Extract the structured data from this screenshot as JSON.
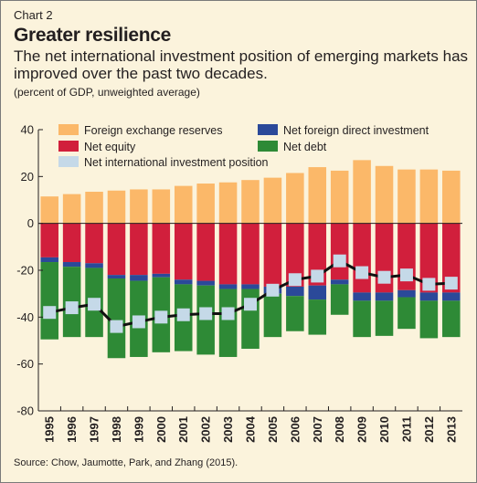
{
  "header": {
    "chart_number": "Chart 2",
    "title": "Greater resilience",
    "subtitle": "The net international investment position of emerging markets has improved over the past two decades.",
    "note": "(percent of GDP, unweighted average)"
  },
  "source": "Source: Chow, Jaumotte, Park, and Zhang (2015).",
  "colors": {
    "reserves": "#fbb869",
    "fdi": "#2b4999",
    "equity": "#d11f3c",
    "debt": "#2e8a36",
    "niip": "#c5d9e8"
  },
  "chart_data": {
    "type": "bar",
    "title": "Greater resilience",
    "ylim": [
      -80,
      40
    ],
    "yticks": [
      40,
      20,
      0,
      -20,
      -40,
      -60,
      -80
    ],
    "grid": false,
    "legend": "top",
    "categories": [
      "1995",
      "1996",
      "1997",
      "1998",
      "1999",
      "2000",
      "2001",
      "2002",
      "2003",
      "2004",
      "2005",
      "2006",
      "2007",
      "2008",
      "2009",
      "2010",
      "2011",
      "2012",
      "2013"
    ],
    "series": [
      {
        "name": "Foreign exchange reserves",
        "values": [
          11.5,
          12.5,
          13.5,
          14,
          14.5,
          14.5,
          16,
          17,
          17.5,
          18.5,
          19.5,
          21.5,
          24,
          22.5,
          27,
          24.5,
          23,
          23,
          22.5
        ]
      },
      {
        "name": "Net equity",
        "values": [
          -14.5,
          -16.5,
          -17,
          -22,
          -22,
          -21.5,
          -24,
          -24.5,
          -26,
          -26,
          -27,
          -27,
          -26.5,
          -24,
          -29.5,
          -29.5,
          -28.5,
          -29.5,
          -29.5
        ]
      },
      {
        "name": "Net foreign direct investment",
        "values": [
          -2,
          -2,
          -2,
          -1.5,
          -2.5,
          -1.5,
          -2,
          -2,
          -2,
          -2,
          -3,
          -4,
          -6,
          -2,
          -3.5,
          -3.5,
          -3,
          -3.5,
          -3.5
        ]
      },
      {
        "name": "Net debt",
        "values": [
          -33,
          -30,
          -29.5,
          -34,
          -32.5,
          -32,
          -28.5,
          -29.5,
          -29,
          -25.5,
          -18.5,
          -15,
          -15,
          -13,
          -15.5,
          -15,
          -13.5,
          -16,
          -15.5
        ]
      },
      {
        "name": "Net international investment position",
        "values": [
          -38,
          -36,
          -34.5,
          -44,
          -42,
          -40,
          -39,
          -38.5,
          -38.5,
          -34.5,
          -28.5,
          -24,
          -22.5,
          -16,
          -21,
          -23,
          -22,
          -26,
          -25.5
        ]
      }
    ]
  }
}
